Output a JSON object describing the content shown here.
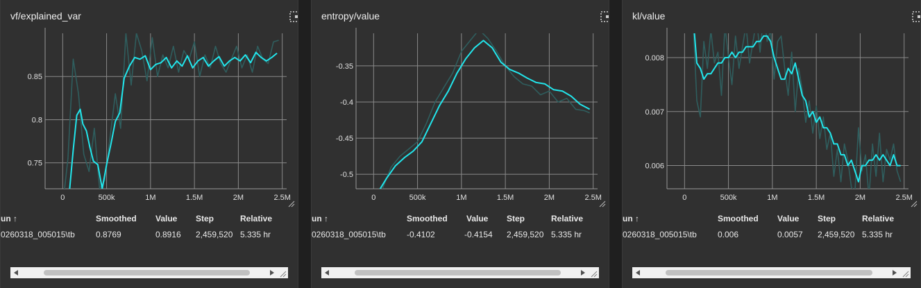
{
  "charts": [
    {
      "title": "vf/explained_var",
      "table": {
        "headers": {
          "run": "un ↑",
          "smoothed": "Smoothed",
          "value": "Value",
          "step": "Step",
          "relative": "Relative"
        },
        "row": {
          "run": "0260318_005015\\tb",
          "smoothed": "0.8769",
          "value": "0.8916",
          "step": "2,459,520",
          "relative": "5.335 hr"
        }
      }
    },
    {
      "title": "entropy/value",
      "table": {
        "headers": {
          "run": "un ↑",
          "smoothed": "Smoothed",
          "value": "Value",
          "step": "Step",
          "relative": "Relative"
        },
        "row": {
          "run": "0260318_005015\\tb",
          "smoothed": "-0.4102",
          "value": "-0.4154",
          "step": "2,459,520",
          "relative": "5.335 hr"
        }
      }
    },
    {
      "title": "kl/value",
      "table": {
        "headers": {
          "run": "un ↑",
          "smoothed": "Smoothed",
          "value": "Value",
          "step": "Step",
          "relative": "Relative"
        },
        "row": {
          "run": "0260318_005015\\tb",
          "smoothed": "0.006",
          "value": "0.0057",
          "step": "2,459,520",
          "relative": "5.335 hr"
        }
      }
    }
  ],
  "chart_data": [
    {
      "type": "line",
      "title": "vf/explained_var",
      "xlim": [
        -200000,
        2550000
      ],
      "ylim": [
        0.72,
        0.9
      ],
      "x_ticks": [
        0,
        500000,
        1000000,
        1500000,
        2000000,
        2500000
      ],
      "x_tick_labels": [
        "0",
        "500k",
        "1M",
        "1.5M",
        "2M",
        "2.5M"
      ],
      "y_ticks": [
        0.75,
        0.8,
        0.85
      ],
      "y_tick_labels": [
        "0.75",
        "0.8",
        "0.85"
      ],
      "grid": true,
      "series": [
        {
          "color": "#2f5e5e",
          "x": [
            0,
            60000,
            120000,
            180000,
            240000,
            300000,
            360000,
            420000,
            480000,
            540000,
            600000,
            660000,
            720000,
            780000,
            840000,
            900000,
            960000,
            1020000,
            1080000,
            1140000,
            1200000,
            1260000,
            1320000,
            1380000,
            1440000,
            1500000,
            1560000,
            1620000,
            1680000,
            1740000,
            1800000,
            1860000,
            1920000,
            1980000,
            2040000,
            2100000,
            2160000,
            2220000,
            2280000,
            2340000,
            2400000,
            2460000
          ],
          "y": [
            0.7,
            0.755,
            0.87,
            0.83,
            0.76,
            0.74,
            0.79,
            0.72,
            0.73,
            0.78,
            0.83,
            0.79,
            0.9,
            0.84,
            0.9,
            0.88,
            0.845,
            0.895,
            0.85,
            0.875,
            0.86,
            0.885,
            0.855,
            0.88,
            0.87,
            0.89,
            0.85,
            0.875,
            0.86,
            0.885,
            0.865,
            0.855,
            0.87,
            0.885,
            0.86,
            0.875,
            0.855,
            0.885,
            0.87,
            0.865,
            0.89,
            0.892
          ]
        },
        {
          "color": "#22e6ec",
          "x": [
            80000,
            120000,
            160000,
            200000,
            230000,
            270000,
            310000,
            350000,
            400000,
            450000,
            500000,
            550000,
            600000,
            650000,
            700000,
            760000,
            820000,
            880000,
            940000,
            1000000,
            1060000,
            1120000,
            1180000,
            1240000,
            1300000,
            1360000,
            1420000,
            1480000,
            1540000,
            1600000,
            1660000,
            1720000,
            1780000,
            1840000,
            1900000,
            1960000,
            2020000,
            2080000,
            2140000,
            2200000,
            2260000,
            2320000,
            2380000,
            2440000
          ],
          "y": [
            0.72,
            0.765,
            0.805,
            0.812,
            0.795,
            0.787,
            0.768,
            0.752,
            0.748,
            0.72,
            0.748,
            0.772,
            0.798,
            0.808,
            0.848,
            0.862,
            0.872,
            0.87,
            0.874,
            0.858,
            0.864,
            0.866,
            0.872,
            0.86,
            0.868,
            0.862,
            0.874,
            0.86,
            0.868,
            0.872,
            0.862,
            0.868,
            0.873,
            0.862,
            0.868,
            0.872,
            0.868,
            0.875,
            0.866,
            0.878,
            0.872,
            0.868,
            0.872,
            0.877
          ]
        }
      ]
    },
    {
      "type": "line",
      "title": "entropy/value",
      "xlim": [
        -200000,
        2550000
      ],
      "ylim": [
        -0.52,
        -0.305
      ],
      "x_ticks": [
        0,
        500000,
        1000000,
        1500000,
        2000000,
        2500000
      ],
      "x_tick_labels": [
        "0",
        "500k",
        "1M",
        "1.5M",
        "2M",
        "2.5M"
      ],
      "y_ticks": [
        -0.5,
        -0.45,
        -0.4,
        -0.35
      ],
      "y_tick_labels": [
        "-0.5",
        "-0.45",
        "-0.4",
        "-0.35"
      ],
      "grid": true,
      "series": [
        {
          "color": "#2f5e5e",
          "x": [
            100000,
            200000,
            300000,
            400000,
            500000,
            600000,
            700000,
            800000,
            900000,
            1000000,
            1100000,
            1200000,
            1300000,
            1400000,
            1500000,
            1600000,
            1700000,
            1800000,
            1900000,
            2000000,
            2100000,
            2200000,
            2300000,
            2400000,
            2460000
          ],
          "y": [
            -0.52,
            -0.49,
            -0.475,
            -0.465,
            -0.455,
            -0.43,
            -0.4,
            -0.38,
            -0.36,
            -0.33,
            -0.315,
            -0.3,
            -0.312,
            -0.33,
            -0.35,
            -0.365,
            -0.375,
            -0.378,
            -0.39,
            -0.385,
            -0.4,
            -0.395,
            -0.41,
            -0.412,
            -0.415
          ]
        },
        {
          "color": "#22e6ec",
          "x": [
            50000,
            150000,
            250000,
            350000,
            450000,
            550000,
            650000,
            750000,
            850000,
            950000,
            1050000,
            1150000,
            1250000,
            1350000,
            1450000,
            1550000,
            1650000,
            1750000,
            1850000,
            1950000,
            2050000,
            2150000,
            2250000,
            2350000,
            2460000
          ],
          "y": [
            -0.525,
            -0.505,
            -0.488,
            -0.477,
            -0.468,
            -0.455,
            -0.43,
            -0.405,
            -0.385,
            -0.36,
            -0.34,
            -0.325,
            -0.315,
            -0.325,
            -0.345,
            -0.355,
            -0.36,
            -0.367,
            -0.373,
            -0.375,
            -0.383,
            -0.385,
            -0.392,
            -0.403,
            -0.41
          ]
        }
      ]
    },
    {
      "type": "line",
      "title": "kl/value",
      "xlim": [
        -200000,
        2550000
      ],
      "ylim": [
        0.00557,
        0.00845
      ],
      "x_ticks": [
        0,
        500000,
        1000000,
        1500000,
        2000000,
        2500000
      ],
      "x_tick_labels": [
        "0",
        "500k",
        "1M",
        "1.5M",
        "2M",
        "2.5M"
      ],
      "y_ticks": [
        0.006,
        0.007,
        0.008
      ],
      "y_tick_labels": [
        "0.006",
        "0.007",
        "0.008"
      ],
      "grid": true,
      "series": [
        {
          "color": "#2f5e5e",
          "x": [
            100000,
            140000,
            180000,
            220000,
            260000,
            300000,
            340000,
            380000,
            420000,
            460000,
            500000,
            540000,
            580000,
            620000,
            660000,
            700000,
            740000,
            780000,
            820000,
            860000,
            900000,
            940000,
            980000,
            1020000,
            1060000,
            1100000,
            1140000,
            1180000,
            1220000,
            1260000,
            1300000,
            1340000,
            1380000,
            1420000,
            1460000,
            1500000,
            1540000,
            1580000,
            1620000,
            1660000,
            1700000,
            1740000,
            1780000,
            1820000,
            1860000,
            1900000,
            1940000,
            1980000,
            2020000,
            2060000,
            2100000,
            2140000,
            2180000,
            2220000,
            2260000,
            2300000,
            2340000,
            2380000,
            2420000,
            2460000
          ],
          "y": [
            0.0086,
            0.0072,
            0.0069,
            0.0083,
            0.0078,
            0.0085,
            0.0079,
            0.0081,
            0.0073,
            0.0086,
            0.008,
            0.0075,
            0.0084,
            0.0078,
            0.0082,
            0.0086,
            0.0079,
            0.0083,
            0.0087,
            0.0081,
            0.0088,
            0.0083,
            0.0085,
            0.0076,
            0.0083,
            0.0084,
            0.0078,
            0.0073,
            0.0081,
            0.007,
            0.0078,
            0.0074,
            0.0068,
            0.0072,
            0.0066,
            0.0071,
            0.0065,
            0.0069,
            0.0063,
            0.0066,
            0.0058,
            0.0063,
            0.0057,
            0.0064,
            0.0061,
            0.0056,
            0.0055,
            0.0067,
            0.0059,
            0.0062,
            0.0054,
            0.0064,
            0.0058,
            0.0066,
            0.0057,
            0.0063,
            0.0061,
            0.0064,
            0.0059,
            0.0057
          ]
        },
        {
          "color": "#22e6ec",
          "x": [
            100000,
            140000,
            180000,
            220000,
            260000,
            300000,
            340000,
            380000,
            420000,
            460000,
            500000,
            540000,
            580000,
            620000,
            660000,
            700000,
            740000,
            780000,
            820000,
            860000,
            900000,
            940000,
            980000,
            1020000,
            1060000,
            1100000,
            1140000,
            1180000,
            1220000,
            1260000,
            1300000,
            1340000,
            1380000,
            1420000,
            1460000,
            1500000,
            1540000,
            1580000,
            1620000,
            1660000,
            1700000,
            1740000,
            1780000,
            1820000,
            1860000,
            1900000,
            1940000,
            1980000,
            2020000,
            2060000,
            2100000,
            2140000,
            2180000,
            2220000,
            2260000,
            2300000,
            2340000,
            2380000,
            2420000,
            2460000
          ],
          "y": [
            0.0087,
            0.0079,
            0.0078,
            0.0076,
            0.0077,
            0.0077,
            0.0078,
            0.0079,
            0.0079,
            0.008,
            0.008,
            0.0081,
            0.008,
            0.0081,
            0.0081,
            0.0082,
            0.0082,
            0.0082,
            0.0083,
            0.0083,
            0.0084,
            0.0084,
            0.0083,
            0.008,
            0.0078,
            0.0076,
            0.0076,
            0.0078,
            0.0077,
            0.0079,
            0.0076,
            0.0073,
            0.0072,
            0.0069,
            0.007,
            0.0068,
            0.0069,
            0.0067,
            0.0067,
            0.0066,
            0.0064,
            0.0064,
            0.0062,
            0.0062,
            0.006,
            0.0061,
            0.0059,
            0.0057,
            0.006,
            0.006,
            0.0061,
            0.0061,
            0.0062,
            0.0061,
            0.0062,
            0.0061,
            0.006,
            0.0062,
            0.006,
            0.006
          ]
        }
      ]
    }
  ]
}
